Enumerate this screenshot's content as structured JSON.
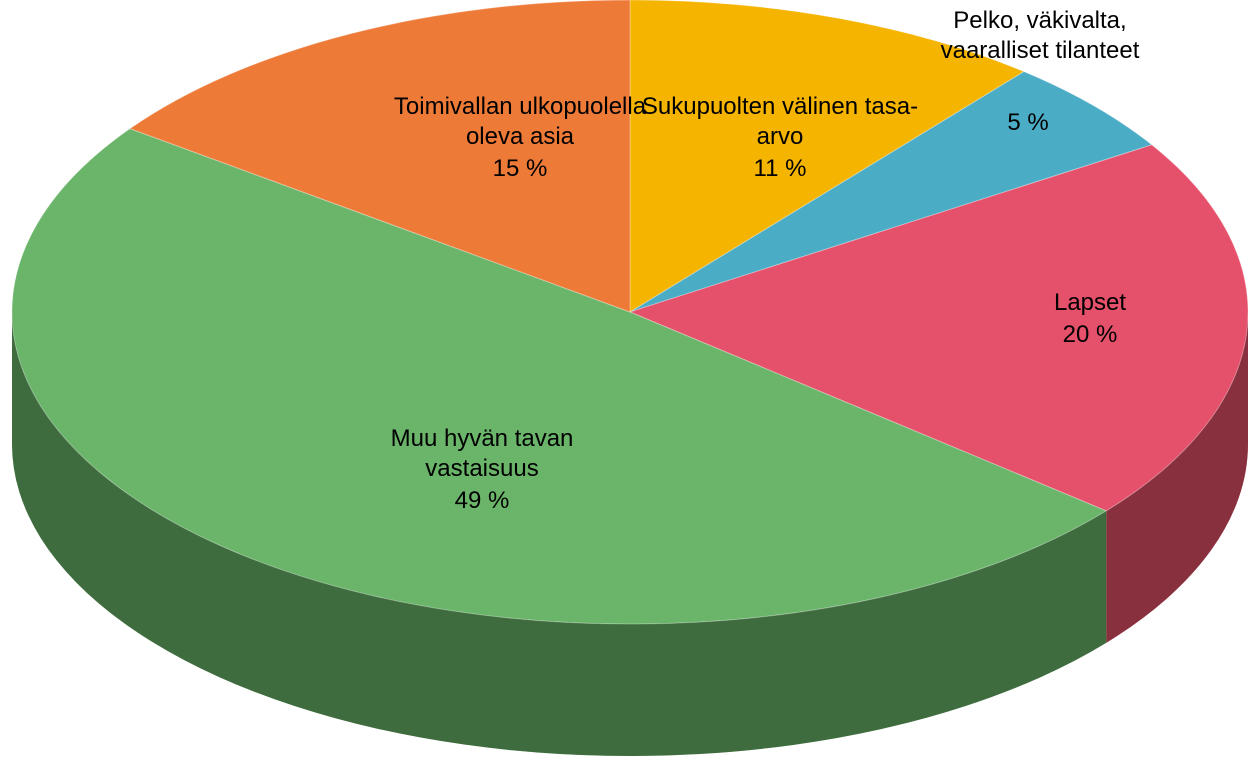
{
  "chart_data": {
    "type": "pie3d",
    "categories": [
      "Sukupuolten välinen tasa-arvo",
      "Pelko, väkivalta, vaaralliset tilanteet",
      "Lapset",
      "Muu hyvän tavan vastaisuus",
      "Toimivallan ulkopuolella oleva asia"
    ],
    "values": [
      11,
      5,
      20,
      49,
      15
    ],
    "value_labels": [
      "11 %",
      "5 %",
      "20 %",
      "49 %",
      "15 %"
    ],
    "colors": [
      "#f5b400",
      "#4bacc6",
      "#e5506a",
      "#6ab56a",
      "#ee7a38"
    ]
  }
}
